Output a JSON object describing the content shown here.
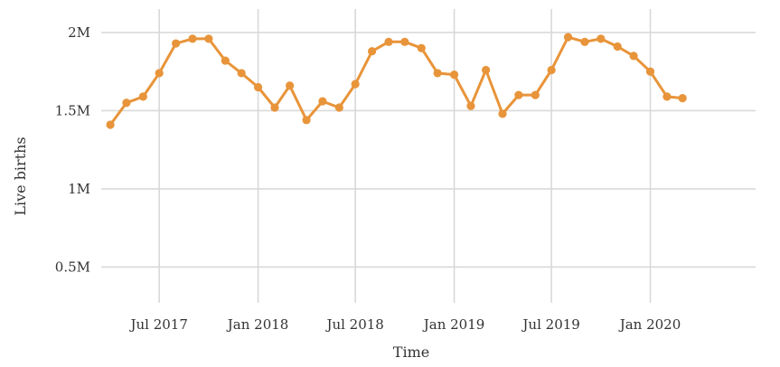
{
  "chart_data": {
    "type": "line",
    "title": "",
    "xlabel": "Time",
    "ylabel": "Live births",
    "ylim": [
      300000,
      2150000
    ],
    "xlim": [
      "2017-03-15",
      "2020-07-15"
    ],
    "y_ticks": [
      {
        "value": 500000,
        "label": "0.5M"
      },
      {
        "value": 1000000,
        "label": "1M"
      },
      {
        "value": 1500000,
        "label": "1.5M"
      },
      {
        "value": 2000000,
        "label": "2M"
      }
    ],
    "x_ticks": [
      {
        "value": "2017-07-01",
        "label": "Jul 2017"
      },
      {
        "value": "2018-01-01",
        "label": "Jan 2018"
      },
      {
        "value": "2018-07-01",
        "label": "Jul 2018"
      },
      {
        "value": "2019-01-01",
        "label": "Jan 2019"
      },
      {
        "value": "2019-07-01",
        "label": "Jul 2019"
      },
      {
        "value": "2020-01-01",
        "label": "Jan 2020"
      }
    ],
    "grid": true,
    "colors": {
      "series": "#e8943a",
      "grid": "#d9d9d9",
      "text": "#333333"
    },
    "series": [
      {
        "points": [
          {
            "x": "2017-04-01",
            "y": 1410000
          },
          {
            "x": "2017-05-01",
            "y": 1550000
          },
          {
            "x": "2017-06-01",
            "y": 1590000
          },
          {
            "x": "2017-07-01",
            "y": 1740000
          },
          {
            "x": "2017-08-01",
            "y": 1930000
          },
          {
            "x": "2017-09-01",
            "y": 1960000
          },
          {
            "x": "2017-10-01",
            "y": 1960000
          },
          {
            "x": "2017-11-01",
            "y": 1820000
          },
          {
            "x": "2017-12-01",
            "y": 1740000
          },
          {
            "x": "2018-01-01",
            "y": 1650000
          },
          {
            "x": "2018-02-01",
            "y": 1520000
          },
          {
            "x": "2018-03-01",
            "y": 1660000
          },
          {
            "x": "2018-04-01",
            "y": 1440000
          },
          {
            "x": "2018-05-01",
            "y": 1560000
          },
          {
            "x": "2018-06-01",
            "y": 1520000
          },
          {
            "x": "2018-07-01",
            "y": 1670000
          },
          {
            "x": "2018-08-01",
            "y": 1880000
          },
          {
            "x": "2018-09-01",
            "y": 1940000
          },
          {
            "x": "2018-10-01",
            "y": 1940000
          },
          {
            "x": "2018-11-01",
            "y": 1900000
          },
          {
            "x": "2018-12-01",
            "y": 1740000
          },
          {
            "x": "2019-01-01",
            "y": 1730000
          },
          {
            "x": "2019-02-01",
            "y": 1530000
          },
          {
            "x": "2019-03-01",
            "y": 1760000
          },
          {
            "x": "2019-04-01",
            "y": 1480000
          },
          {
            "x": "2019-05-01",
            "y": 1600000
          },
          {
            "x": "2019-06-01",
            "y": 1600000
          },
          {
            "x": "2019-07-01",
            "y": 1760000
          },
          {
            "x": "2019-08-01",
            "y": 1970000
          },
          {
            "x": "2019-09-01",
            "y": 1940000
          },
          {
            "x": "2019-10-01",
            "y": 1960000
          },
          {
            "x": "2019-11-01",
            "y": 1910000
          },
          {
            "x": "2019-12-01",
            "y": 1850000
          },
          {
            "x": "2020-01-01",
            "y": 1750000
          },
          {
            "x": "2020-02-01",
            "y": 1590000
          },
          {
            "x": "2020-03-01",
            "y": 1580000
          }
        ]
      }
    ]
  }
}
